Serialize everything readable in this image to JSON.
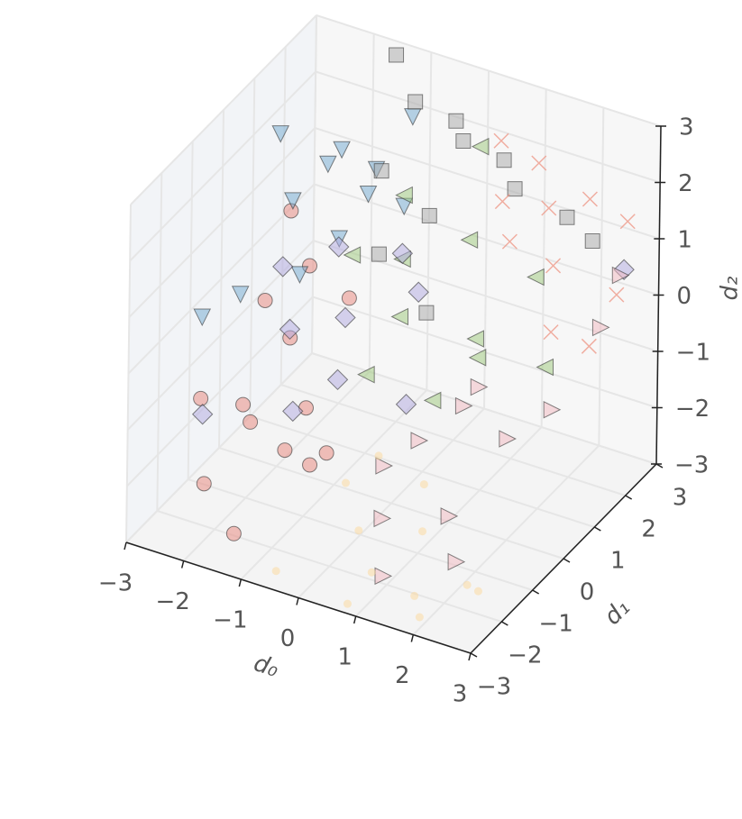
{
  "chart_data": {
    "type": "scatter3d",
    "xlabel": "d₀",
    "ylabel": "d₁",
    "zlabel": "d₂",
    "xlim": [
      -3,
      3
    ],
    "ylim": [
      -3,
      3
    ],
    "zlim": [
      -3,
      3
    ],
    "xticks": [
      {
        "value": -3,
        "label": "−3"
      },
      {
        "value": -2,
        "label": "−2"
      },
      {
        "value": -1,
        "label": "−1"
      },
      0,
      1,
      2,
      3
    ],
    "yticks": [
      {
        "value": -3,
        "label": "−3"
      },
      {
        "value": -2,
        "label": "−2"
      },
      {
        "value": -1,
        "label": "−1"
      },
      0,
      1,
      2,
      3
    ],
    "zticks": [
      {
        "value": -3,
        "label": "−3"
      },
      {
        "value": -2,
        "label": "−2"
      },
      {
        "value": -1,
        "label": "−1"
      },
      0,
      1,
      2,
      3
    ],
    "grid": true,
    "series": [
      {
        "color": "#e8837a",
        "marker": "circle",
        "x": [
          -2.8,
          -2.5,
          -2.2,
          -2,
          -1.8,
          -1.5,
          -1.2,
          -1,
          -0.8,
          -2.6,
          -1.9,
          -0.5,
          -1.4,
          -2.3
        ],
        "y": [
          -1,
          0.5,
          -0.5,
          1,
          -1.5,
          0,
          0.8,
          -0.8,
          -2,
          1.5,
          0.2,
          -1.2,
          -2.5,
          -1.8
        ],
        "z": [
          -1.5,
          -0.5,
          -2,
          0,
          -1,
          -1.8,
          -0.2,
          -2.2,
          -1.2,
          0.5,
          -0.8,
          -1.6,
          -2.6,
          -2.4
        ]
      },
      {
        "color": "#6fa8d0",
        "marker": "tri-down",
        "x": [
          -2.8,
          -2.5,
          -2.2,
          -2,
          -1.6,
          -1.2,
          -0.8,
          -2.4,
          -1.8,
          -1,
          -2.9,
          -1.5
        ],
        "y": [
          1.5,
          2.5,
          0.8,
          2,
          1.2,
          2.8,
          1.8,
          -0.5,
          0.3,
          1,
          -0.8,
          2.2
        ],
        "z": [
          1.8,
          0.8,
          1.2,
          1.5,
          0.5,
          1.9,
          1,
          0.2,
          0.3,
          1.6,
          -0.2,
          1.2
        ]
      },
      {
        "color": "#a8a8a8",
        "marker": "square",
        "x": [
          -1.5,
          -1,
          -0.5,
          0,
          0.5,
          -1.2,
          -0.2,
          0.8,
          1.5,
          2,
          -0.8,
          0.3
        ],
        "y": [
          2.8,
          2.5,
          2.9,
          2.2,
          2.6,
          1.8,
          1.5,
          2.4,
          2.8,
          2.7,
          1,
          0.5
        ],
        "z": [
          2.9,
          2.4,
          2,
          2.2,
          1.8,
          1.5,
          1.2,
          1.5,
          1,
          0.8,
          0.6,
          0.2
        ]
      },
      {
        "color": "#9cc77a",
        "marker": "tri-left",
        "x": [
          -1,
          -0.5,
          0,
          0.5,
          1,
          1.5,
          -0.2,
          0.8,
          0.3,
          1.2,
          -0.8,
          2
        ],
        "y": [
          0.5,
          1.2,
          0.2,
          1.5,
          0.8,
          1.8,
          -0.5,
          -0.2,
          2.2,
          0.5,
          1.8,
          1.2
        ],
        "z": [
          0.8,
          0.5,
          0.2,
          1,
          -0.2,
          0.5,
          -0.5,
          -0.8,
          2.2,
          -0.3,
          1.2,
          -0.6
        ]
      },
      {
        "color": "#b0a8e0",
        "marker": "diamond",
        "x": [
          -2.2,
          -1.8,
          -1.5,
          -1,
          -0.5,
          0,
          -1.2,
          -0.8,
          -2.5,
          0.5,
          2.5
        ],
        "y": [
          0.5,
          0,
          1,
          0.3,
          1.2,
          0.8,
          -1,
          -0.3,
          -1.5,
          -0.5,
          2.8
        ],
        "z": [
          0.2,
          -0.5,
          0.5,
          -0.2,
          0.6,
          0.3,
          -1.2,
          -0.9,
          -1.4,
          -0.8,
          0.4
        ]
      },
      {
        "color": "#f1b8c0",
        "marker": "tri-right",
        "x": [
          1,
          1.5,
          2,
          2.5,
          2.8,
          1.8,
          2.2,
          1.2,
          0.5,
          2.6,
          1.6,
          0.8
        ],
        "y": [
          -1,
          -0.5,
          0,
          0.5,
          1.5,
          -1.5,
          -2,
          -2.5,
          -1.2,
          2.5,
          -0.2,
          -1.8
        ],
        "z": [
          -1,
          -0.5,
          -1.2,
          -0.8,
          0.2,
          -1.8,
          -2.2,
          -2.5,
          -1.5,
          0.5,
          -0.3,
          -2
        ]
      },
      {
        "color": "#ee9a8a",
        "marker": "x",
        "x": [
          0.5,
          1,
          1.5,
          2,
          2.5,
          1.2,
          1.8,
          2.8,
          0.8,
          2.2,
          2.6
        ],
        "y": [
          2.5,
          2.8,
          2.2,
          2.6,
          2.9,
          1.5,
          1.8,
          2,
          2,
          1,
          1.5
        ],
        "z": [
          2.2,
          1.8,
          1.5,
          1.6,
          1.2,
          1.2,
          0.8,
          0.5,
          1.5,
          0.2,
          -0.2
        ]
      },
      {
        "color": "#fbd79a",
        "marker": "dot",
        "x": [
          0,
          0.5,
          1,
          1.5,
          2,
          2.5,
          0.3,
          1.2,
          1.8,
          0.8,
          2.8,
          -0.5
        ],
        "y": [
          -1.5,
          -2,
          -2.5,
          -1.8,
          -2.8,
          -2.2,
          -1,
          -1.2,
          -2.6,
          -2.9,
          -2.4,
          -2.8
        ],
        "z": [
          -1.8,
          -2.2,
          -2.5,
          -2,
          -2.8,
          -2.4,
          -1.5,
          -1.6,
          -2.6,
          -2.9,
          -2.3,
          -2.8
        ]
      }
    ]
  }
}
